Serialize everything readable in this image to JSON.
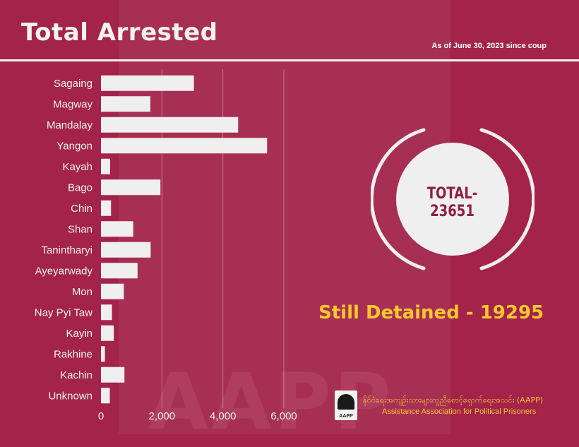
{
  "header": {
    "title": "Total Arrested",
    "subtitle": "As of June 30, 2023 since coup"
  },
  "summary": {
    "total": "TOTAL-23651",
    "detained": "Still Detained - 19295"
  },
  "org": {
    "logo_text": "AAPP",
    "name_native": "နိုင်ငံရေးအကျဉ်းသားများကူညီစောင့်ရှောက်ရေးအသင်း (AAPP)",
    "name_en": "Assistance Association for Political Prisoners"
  },
  "watermark": "AAPP",
  "colors": {
    "background": "#a3234a",
    "bar": "#efefef",
    "accent": "#f7c82e",
    "circle_text": "#8e1f40"
  },
  "chart_data": {
    "type": "bar",
    "orientation": "horizontal",
    "categories": [
      "Sagaing",
      "Magway",
      "Mandalay",
      "Yangon",
      "Kayah",
      "Bago",
      "Chin",
      "Shan",
      "Tanintharyi",
      "Ayeyarwady",
      "Mon",
      "Nay Pyi Taw",
      "Kayin",
      "Rakhine",
      "Kachin",
      "Unknown"
    ],
    "values": [
      3050,
      1620,
      4500,
      5450,
      300,
      1950,
      330,
      1060,
      1630,
      1200,
      750,
      360,
      420,
      130,
      770,
      290
    ],
    "x_ticks": [
      0,
      2000,
      4000,
      6000
    ],
    "x_tick_labels": [
      "0",
      "2,000",
      "4,000",
      "6,000"
    ],
    "xlim": [
      0,
      6000
    ],
    "grid": true
  }
}
